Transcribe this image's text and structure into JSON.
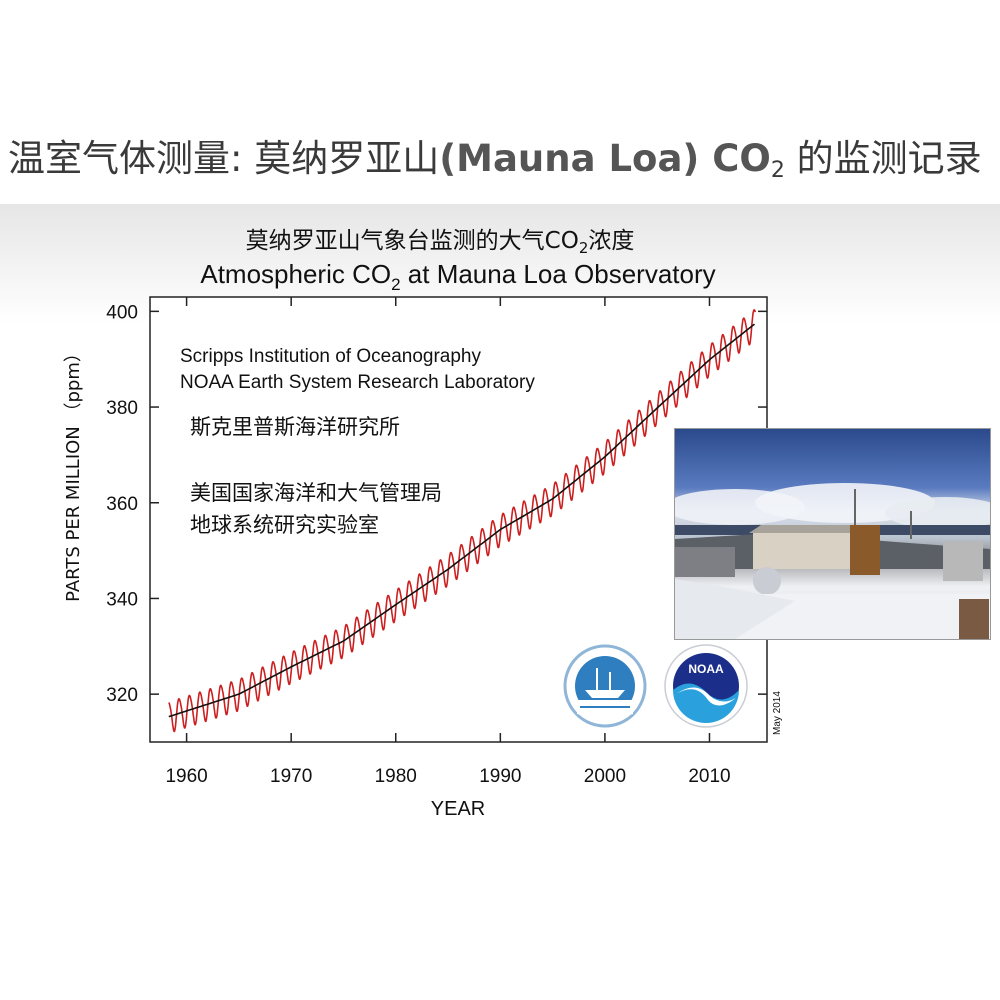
{
  "slide": {
    "title_prefix": "温室气体测量: 莫纳罗亚山",
    "title_bold": "(Mauna Loa) CO",
    "title_sub": "2",
    "title_suffix": " 的监测记录"
  },
  "chart_data": {
    "type": "line",
    "title_cn_pre": "莫纳罗亚山气象台监测的大气CO",
    "title_cn_sub": "2",
    "title_cn_post": "浓度",
    "title_en_pre": "Atmospheric CO",
    "title_en_sub": "2",
    "title_en_post": " at Mauna Loa Observatory",
    "xlabel": "YEAR",
    "ylabel": "PARTS PER MILLION （ppm）",
    "xlim": [
      1956.5,
      2015.5
    ],
    "ylim": [
      310,
      403
    ],
    "x_ticks": [
      1960,
      1970,
      1980,
      1990,
      2000,
      2010
    ],
    "y_ticks": [
      320,
      340,
      360,
      380,
      400
    ],
    "grid": false,
    "annotations": {
      "org_en_1": "Scripps Institution of Oceanography",
      "org_en_2": "NOAA Earth System Research Laboratory",
      "org_cn_1": "斯克里普斯海洋研究所",
      "org_cn_2": "美国国家海洋和大气管理局",
      "org_cn_3": "地球系统研究实验室",
      "date_stamp": "May 2014",
      "noaa_logo_text": "NOAA"
    },
    "series": [
      {
        "color": "#cc1f1f",
        "seasonal_amplitude": 3.2,
        "x": [
          1958.3,
          1965,
          1970,
          1975,
          1980,
          1985,
          1990,
          1995,
          2000,
          2005,
          2010,
          2014.4
        ],
        "values": [
          315.3,
          320.0,
          325.7,
          331.1,
          338.7,
          346.1,
          354.4,
          360.8,
          369.6,
          379.8,
          389.9,
          397.5
        ]
      },
      {
        "color": "#111111",
        "x": [
          1958.3,
          1965,
          1970,
          1975,
          1980,
          1985,
          1990,
          1995,
          2000,
          2005,
          2010,
          2014.4
        ],
        "values": [
          315.3,
          320.0,
          325.7,
          331.1,
          338.7,
          346.1,
          354.4,
          360.8,
          369.6,
          379.8,
          389.9,
          397.5
        ]
      }
    ]
  }
}
